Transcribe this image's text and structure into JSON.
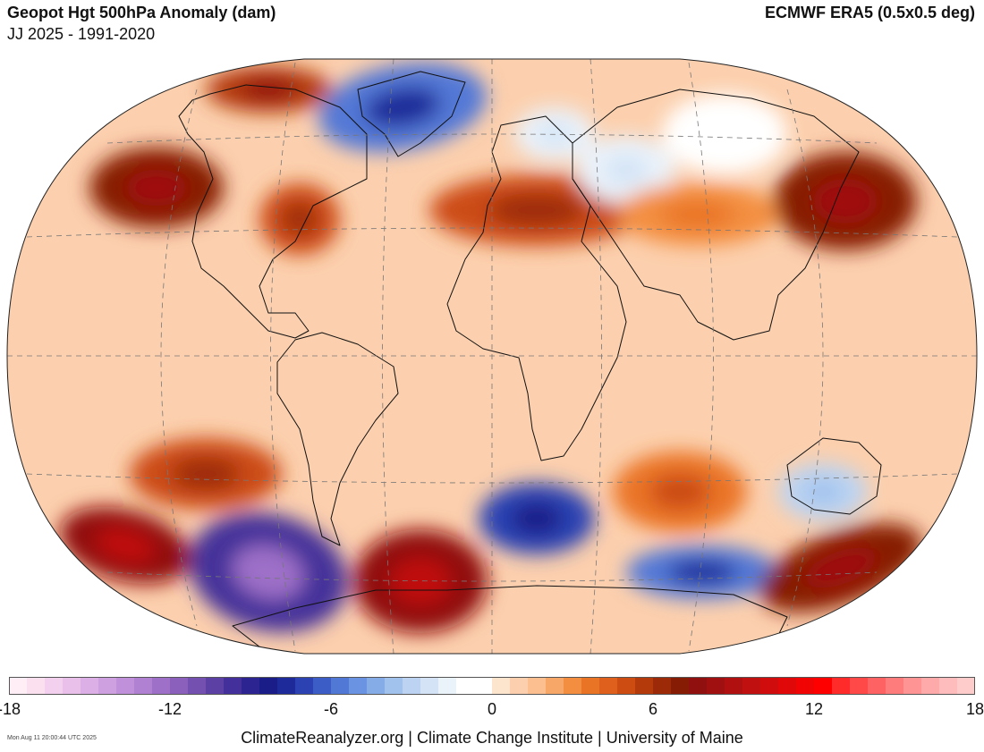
{
  "header": {
    "title": "Geopot Hgt 500hPa Anomaly (dam)",
    "subtitle": "JJ 2025 - 1991-2020",
    "source": "ECMWF ERA5 (0.5x0.5 deg)"
  },
  "colorbar": {
    "tick_labels": [
      "-18",
      "-12",
      "-6",
      "0",
      "6",
      "12",
      "18"
    ],
    "range": [
      -18,
      18
    ],
    "colors": [
      "#ffeef6",
      "#fbe0f0",
      "#f3d0ee",
      "#e8c0ea",
      "#dcb0e6",
      "#cfa0e0",
      "#c090da",
      "#b080d2",
      "#9e70c8",
      "#8a60bc",
      "#7450b0",
      "#5c40a4",
      "#44309a",
      "#2c2490",
      "#1a1c88",
      "#1e2a9a",
      "#2c42b2",
      "#3c5cc6",
      "#5278d6",
      "#6a94e2",
      "#86ace8",
      "#a2c2ee",
      "#bcd4f2",
      "#d4e4f6",
      "#eaf2fa",
      "#ffffff",
      "#ffffff",
      "#fde4cc",
      "#fcd0ae",
      "#fbbf90",
      "#f7a868",
      "#f38e40",
      "#ea7426",
      "#de601c",
      "#cc4c12",
      "#b43a0c",
      "#9c2a08",
      "#861c04",
      "#901010",
      "#a01010",
      "#b01010",
      "#c01010",
      "#d00c0c",
      "#e00808",
      "#f00404",
      "#ff0000",
      "#ff2a2a",
      "#ff4848",
      "#ff6262",
      "#ff7c7c",
      "#ff9494",
      "#ffaaaa",
      "#ffbcbc",
      "#ffcccc"
    ]
  },
  "map": {
    "projection": "Winkel Tripel",
    "anomalies": [
      {
        "name": "Greenland / Baffin",
        "value": -6
      },
      {
        "name": "Norwegian Sea",
        "value": -2
      },
      {
        "name": "Alaska",
        "value": 6
      },
      {
        "name": "NE Pacific",
        "value": 7
      },
      {
        "name": "NE USA",
        "value": 5
      },
      {
        "name": "Mediterranean / Europe",
        "value": 5
      },
      {
        "name": "West Siberia",
        "value": -2
      },
      {
        "name": "East Siberia",
        "value": -1
      },
      {
        "name": "NE China / Japan",
        "value": 7
      },
      {
        "name": "Eastern Europe / Central Asia",
        "value": 3
      },
      {
        "name": "South Pacific",
        "value": 5
      },
      {
        "name": "Southern Ocean (Pacific sector)",
        "value": -10
      },
      {
        "name": "Drake Passage / Weddell Sea",
        "value": 8
      },
      {
        "name": "South Atlantic",
        "value": -7
      },
      {
        "name": "Indian Ocean",
        "value": 4
      },
      {
        "name": "Australia",
        "value": -3
      },
      {
        "name": "Southern Ocean (Indian sector)",
        "value": -6
      },
      {
        "name": "Tasman / Southern Pacific",
        "value": 7
      },
      {
        "name": "SW Pacific",
        "value": 8
      }
    ]
  },
  "footer": {
    "timestamp": "Mon Aug 11 20:00:44 UTC 2025",
    "credits": "ClimateReanalyzer.org | Climate Change Institute | University of Maine"
  }
}
